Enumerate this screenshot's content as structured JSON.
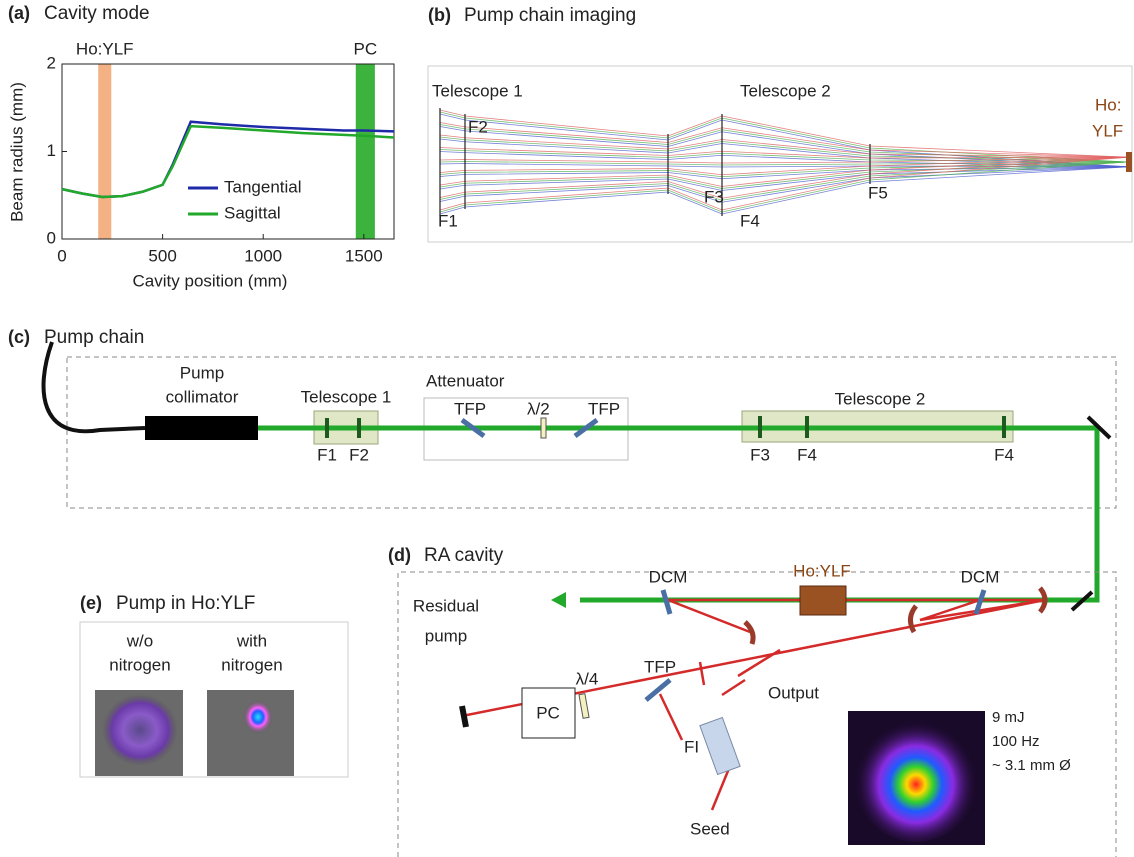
{
  "chart_data": {
    "type": "line",
    "panel_label": "(a)",
    "title": "Cavity mode",
    "xlabel": "Cavity position (mm)",
    "ylabel": "Beam radius (mm)",
    "x": [
      0,
      100,
      200,
      300,
      400,
      500,
      550,
      640,
      800,
      1000,
      1200,
      1400,
      1500,
      1650
    ],
    "series": [
      {
        "name": "Tangential",
        "color": "#1f2aa8",
        "values": [
          0.57,
          0.52,
          0.48,
          0.49,
          0.54,
          0.62,
          0.85,
          1.34,
          1.31,
          1.28,
          1.26,
          1.24,
          1.24,
          1.23
        ]
      },
      {
        "name": "Sagittal",
        "color": "#22a82a",
        "values": [
          0.57,
          0.52,
          0.48,
          0.49,
          0.54,
          0.62,
          0.83,
          1.29,
          1.27,
          1.24,
          1.21,
          1.19,
          1.18,
          1.16
        ]
      }
    ],
    "bands": [
      {
        "label": "Ho:YLF",
        "range": [
          180,
          245
        ],
        "color": "#f4b183"
      },
      {
        "label": "PC",
        "range": [
          1460,
          1555
        ],
        "color": "#3cb33c"
      }
    ],
    "xlim": [
      0,
      1650
    ],
    "xticks": [
      0,
      500,
      1000,
      1500
    ],
    "ylim": [
      0,
      2
    ],
    "yticks": [
      0,
      1,
      2
    ]
  },
  "panel_b": {
    "label": "(b)",
    "title": "Pump chain imaging",
    "telescope1": "Telescope 1",
    "telescope2": "Telescope 2",
    "crystal": [
      "Ho:",
      "YLF"
    ],
    "f1": "F1",
    "f2": "F2",
    "f3": "F3",
    "f4": "F4",
    "f5": "F5"
  },
  "panel_c": {
    "label": "(c)",
    "title": "Pump chain",
    "collimator": [
      "Pump",
      "collimator"
    ],
    "telescope1": "Telescope 1",
    "f1": "F1",
    "f2": "F2",
    "attenuator": "Attenuator",
    "tfp1": "TFP",
    "half_wave": "λ/2",
    "tfp2": "TFP",
    "telescope2": "Telescope 2",
    "f3": "F3",
    "f4a": "F4",
    "f4b": "F4"
  },
  "panel_d": {
    "label": "(d)",
    "title": "RA cavity",
    "residual": [
      "Residual",
      "pump"
    ],
    "dcm1": "DCM",
    "crystal": "Ho:YLF",
    "dcm2": "DCM",
    "pc": "PC",
    "quarter_wave": "λ/4",
    "tfp": "TFP",
    "fi": "FI",
    "output": "Output",
    "seed": "Seed",
    "specs": [
      "9 mJ",
      "100 Hz",
      "~ 3.1 mm Ø"
    ]
  },
  "panel_e": {
    "label": "(e)",
    "title": "Pump in Ho:YLF",
    "without": [
      "w/o",
      "nitrogen"
    ],
    "with": [
      "with",
      "nitrogen"
    ]
  }
}
